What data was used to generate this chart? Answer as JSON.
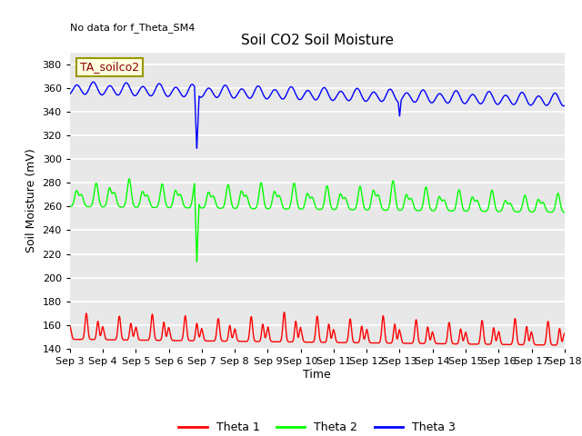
{
  "title": "Soil CO2 Soil Moisture",
  "ylabel": "Soil Moisture (mV)",
  "xlabel": "Time",
  "annotation": "No data for f_Theta_SM4",
  "legend_label": "TA_soilco2",
  "xlim_days": [
    3,
    18
  ],
  "ylim": [
    140,
    390
  ],
  "yticks": [
    140,
    160,
    180,
    200,
    220,
    240,
    260,
    280,
    300,
    320,
    340,
    360,
    380
  ],
  "xtick_labels": [
    "Sep 3",
    "Sep 4",
    "Sep 5",
    "Sep 6",
    "Sep 7",
    "Sep 8",
    "Sep 9",
    "Sep 10",
    "Sep 11",
    "Sep 12",
    "Sep 13",
    "Sep 14",
    "Sep 15",
    "Sep 16",
    "Sep 17",
    "Sep 18"
  ],
  "xtick_positions": [
    3,
    4,
    5,
    6,
    7,
    8,
    9,
    10,
    11,
    12,
    13,
    14,
    15,
    16,
    17,
    18
  ],
  "bg_color": "#e8e8e8",
  "grid_color": "white",
  "theta1_color": "red",
  "theta2_color": "lime",
  "theta3_color": "blue",
  "legend_entries": [
    "Theta 1",
    "Theta 2",
    "Theta 3"
  ]
}
